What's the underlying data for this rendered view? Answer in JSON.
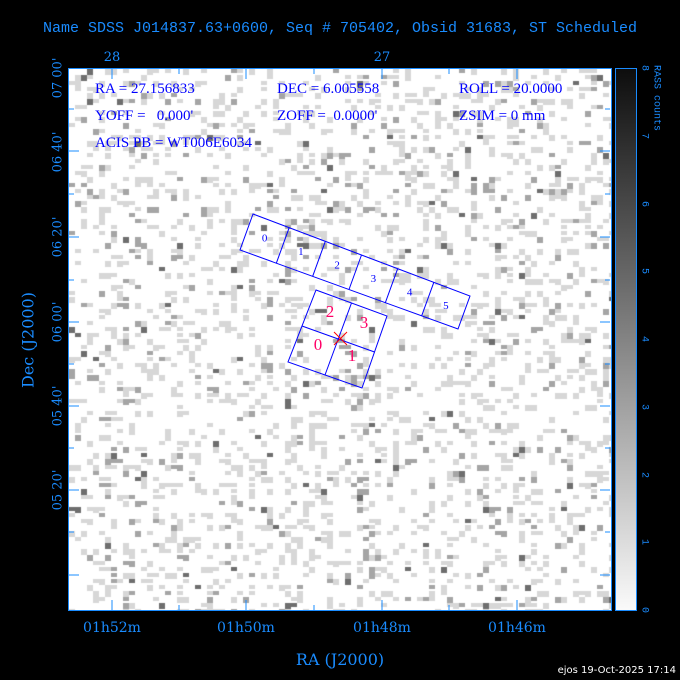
{
  "title": "Name SDSS J014837.63+0600, Seq # 705402, Obsid 31683, ST Scheduled",
  "info": {
    "ra": "RA = 27.156833",
    "dec": "DEC = 6.005558",
    "roll": "ROLL = 20.0000",
    "yoff": "YOFF =   0.000'",
    "zoff": "ZOFF =  0.0000'",
    "zsim": "ZSIM = 0 mm",
    "acis_pb": "ACIS PB = WT006E6034"
  },
  "top_axis_labels": [
    "28",
    "27"
  ],
  "x_axis": {
    "title": "RA (J2000)",
    "ticks": [
      "01h52m",
      "01h50m",
      "01h48m",
      "01h46m"
    ]
  },
  "y_axis": {
    "title": "Dec (J2000)",
    "ticks": [
      "07 00'",
      "06 40'",
      "06 20'",
      "06 00'",
      "05 40'",
      "05 20'"
    ]
  },
  "colorbar": {
    "title": "RASS counts",
    "ticks": [
      "0",
      "1",
      "2",
      "3",
      "4",
      "5",
      "6",
      "7",
      "8"
    ],
    "range": [
      0,
      8
    ]
  },
  "acis_s_chips": [
    "0",
    "1",
    "2",
    "3",
    "4",
    "5"
  ],
  "acis_i_chips": [
    "0",
    "1",
    "2",
    "3"
  ],
  "colors": {
    "axis": "#1a8cff",
    "chip_outline": "#0000ff",
    "acis_i_label": "#ff0066",
    "aimpoint": "#ff0000"
  },
  "footer": "ejos 19-Oct-2025 17:14"
}
